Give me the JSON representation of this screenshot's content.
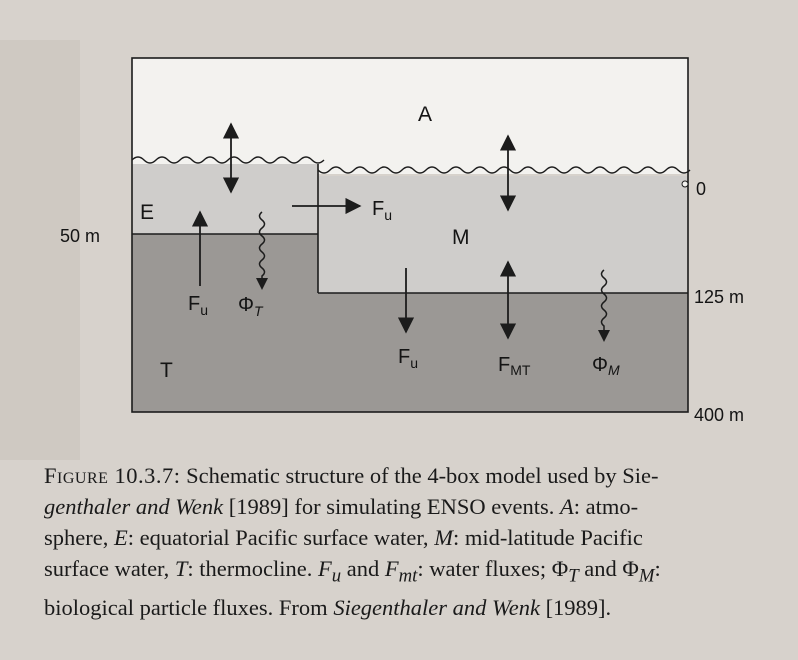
{
  "figure": {
    "labels": {
      "box_a": "A",
      "box_e": "E",
      "box_m": "M",
      "box_t": "T",
      "depth_0": "0",
      "depth_50": "50 m",
      "depth_125": "125 m",
      "depth_400": "400 m",
      "flux_fu_em": "F",
      "flux_fu_em_sub": "u",
      "flux_fu_up": "F",
      "flux_fu_up_sub": "u",
      "flux_phi_t": "Φ",
      "flux_phi_t_sub": "T",
      "flux_fu_down": "F",
      "flux_fu_down_sub": "u",
      "flux_fmt": "F",
      "flux_fmt_sub": "MT",
      "flux_phi_m": "Φ",
      "flux_phi_m_sub": "M"
    },
    "colors": {
      "atmosphere": "#f3f2ef",
      "surface": "#cfcdcb",
      "thermocline": "#9b9895",
      "ink": "#1c1c1c"
    }
  },
  "caption": {
    "figure_number": "Figure 10.3.7:",
    "line1": "Schematic structure of the 4-box model used by Sie-",
    "line2_authors": "genthaler and Wenk",
    "line2_rest": " [1989] for simulating ENSO events. ",
    "line2_a": "A",
    "line2_end": ": atmo-",
    "line3_start": "sphere, ",
    "line3_e": "E",
    "line3_mid": ": equatorial Pacific surface water, ",
    "line3_m": "M",
    "line3_end": ": mid-latitude Pacific",
    "line4_start": "surface water, ",
    "line4_t": "T",
    "line4_mid": ": thermocline. ",
    "line4_f": "F",
    "line4_fu_sub": "u",
    "line4_and": " and ",
    "line4_f2": "F",
    "line4_fmt_sub": "mt",
    "line4_mid2": ": water fluxes; ",
    "line4_phi": "Φ",
    "line4_phit_sub": "T",
    "line4_and2": " and ",
    "line4_phi2": "Φ",
    "line4_phim_sub": "M",
    "line4_end": ":",
    "line5_start": "biological particle fluxes. From ",
    "line5_authors": "Siegenthaler and Wenk",
    "line5_end": " [1989]."
  }
}
